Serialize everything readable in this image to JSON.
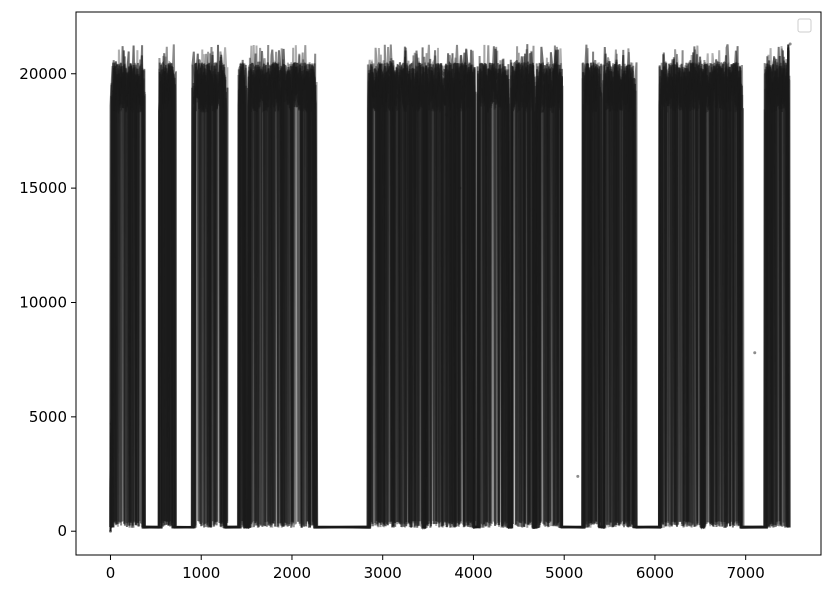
{
  "chart_data": {
    "type": "line",
    "title": "",
    "xlabel": "",
    "ylabel": "",
    "xlim": [
      -380,
      7830
    ],
    "ylim": [
      -1040,
      22700
    ],
    "xticks": [
      0,
      1000,
      2000,
      3000,
      4000,
      5000,
      6000,
      7000
    ],
    "xtick_labels": [
      "0",
      "1000",
      "2000",
      "3000",
      "4000",
      "5000",
      "6000",
      "7000"
    ],
    "yticks": [
      0,
      5000,
      10000,
      15000,
      20000
    ],
    "ytick_labels": [
      "0",
      "5000",
      "10000",
      "15000",
      "20000"
    ],
    "grid": false,
    "legend": {
      "placement": "top-right",
      "entries": []
    },
    "series_count": 12,
    "line_color": "#1a1a1a",
    "high_segments": [
      [
        20,
        370
      ],
      [
        550,
        700
      ],
      [
        920,
        1260
      ],
      [
        1420,
        1490
      ],
      [
        1530,
        2260
      ],
      [
        2850,
        3450
      ],
      [
        3470,
        4010
      ],
      [
        4060,
        4380
      ],
      [
        4420,
        4670
      ],
      [
        4700,
        4960
      ],
      [
        5220,
        5400
      ],
      [
        5450,
        5780
      ],
      [
        6060,
        6530
      ],
      [
        6530,
        6960
      ],
      [
        7230,
        7470
      ]
    ],
    "high_level": 20500,
    "low_level": 150,
    "notable_points": [
      {
        "x": 0,
        "y": 0
      },
      {
        "x": 10,
        "y": 4700
      },
      {
        "x": 3700,
        "y": 18200
      },
      {
        "x": 3850,
        "y": 15000
      },
      {
        "x": 5150,
        "y": 2400
      },
      {
        "x": 7100,
        "y": 7800
      },
      {
        "x": 7490,
        "y": 21300
      }
    ]
  }
}
